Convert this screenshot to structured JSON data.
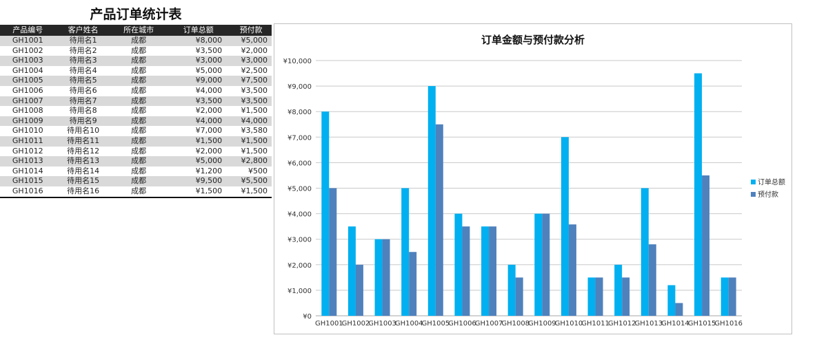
{
  "sheet": {
    "title": "产品订单统计表"
  },
  "table": {
    "headers": [
      "产品编号",
      "客户姓名",
      "所在城市",
      "订单总额",
      "预付款"
    ],
    "rows": [
      [
        "GH1001",
        "待用名1",
        "成都",
        "¥8,000",
        "¥5,000"
      ],
      [
        "GH1002",
        "待用名2",
        "成都",
        "¥3,500",
        "¥2,000"
      ],
      [
        "GH1003",
        "待用名3",
        "成都",
        "¥3,000",
        "¥3,000"
      ],
      [
        "GH1004",
        "待用名4",
        "成都",
        "¥5,000",
        "¥2,500"
      ],
      [
        "GH1005",
        "待用名5",
        "成都",
        "¥9,000",
        "¥7,500"
      ],
      [
        "GH1006",
        "待用名6",
        "成都",
        "¥4,000",
        "¥3,500"
      ],
      [
        "GH1007",
        "待用名7",
        "成都",
        "¥3,500",
        "¥3,500"
      ],
      [
        "GH1008",
        "待用名8",
        "成都",
        "¥2,000",
        "¥1,500"
      ],
      [
        "GH1009",
        "待用名9",
        "成都",
        "¥4,000",
        "¥4,000"
      ],
      [
        "GH1010",
        "待用名10",
        "成都",
        "¥7,000",
        "¥3,580"
      ],
      [
        "GH1011",
        "待用名11",
        "成都",
        "¥1,500",
        "¥1,500"
      ],
      [
        "GH1012",
        "待用名12",
        "成都",
        "¥2,000",
        "¥1,500"
      ],
      [
        "GH1013",
        "待用名13",
        "成都",
        "¥5,000",
        "¥2,800"
      ],
      [
        "GH1014",
        "待用名14",
        "成都",
        "¥1,200",
        "¥500"
      ],
      [
        "GH1015",
        "待用名15",
        "成都",
        "¥9,500",
        "¥5,500"
      ],
      [
        "GH1016",
        "待用名16",
        "成都",
        "¥1,500",
        "¥1,500"
      ]
    ]
  },
  "chart_data": {
    "type": "bar",
    "title": "订单金额与预付款分析",
    "categories": [
      "GH1001",
      "GH1002",
      "GH1003",
      "GH1004",
      "GH1005",
      "GH1006",
      "GH1007",
      "GH1008",
      "GH1009",
      "GH1010",
      "GH1011",
      "GH1012",
      "GH1013",
      "GH1014",
      "GH1015",
      "GH1016"
    ],
    "series": [
      {
        "name": "订单总额",
        "color": "#00b0f0",
        "values": [
          8000,
          3500,
          3000,
          5000,
          9000,
          4000,
          3500,
          2000,
          4000,
          7000,
          1500,
          2000,
          5000,
          1200,
          9500,
          1500
        ]
      },
      {
        "name": "预付款",
        "color": "#4f81bd",
        "values": [
          5000,
          2000,
          3000,
          2500,
          7500,
          3500,
          3500,
          1500,
          4000,
          3580,
          1500,
          1500,
          2800,
          500,
          5500,
          1500
        ]
      }
    ],
    "ylim": [
      0,
      10000
    ],
    "yticks": [
      "¥0",
      "¥1,000",
      "¥2,000",
      "¥3,000",
      "¥4,000",
      "¥5,000",
      "¥6,000",
      "¥7,000",
      "¥8,000",
      "¥9,000",
      "¥10,000"
    ],
    "grid": true,
    "legend_position": "right"
  }
}
